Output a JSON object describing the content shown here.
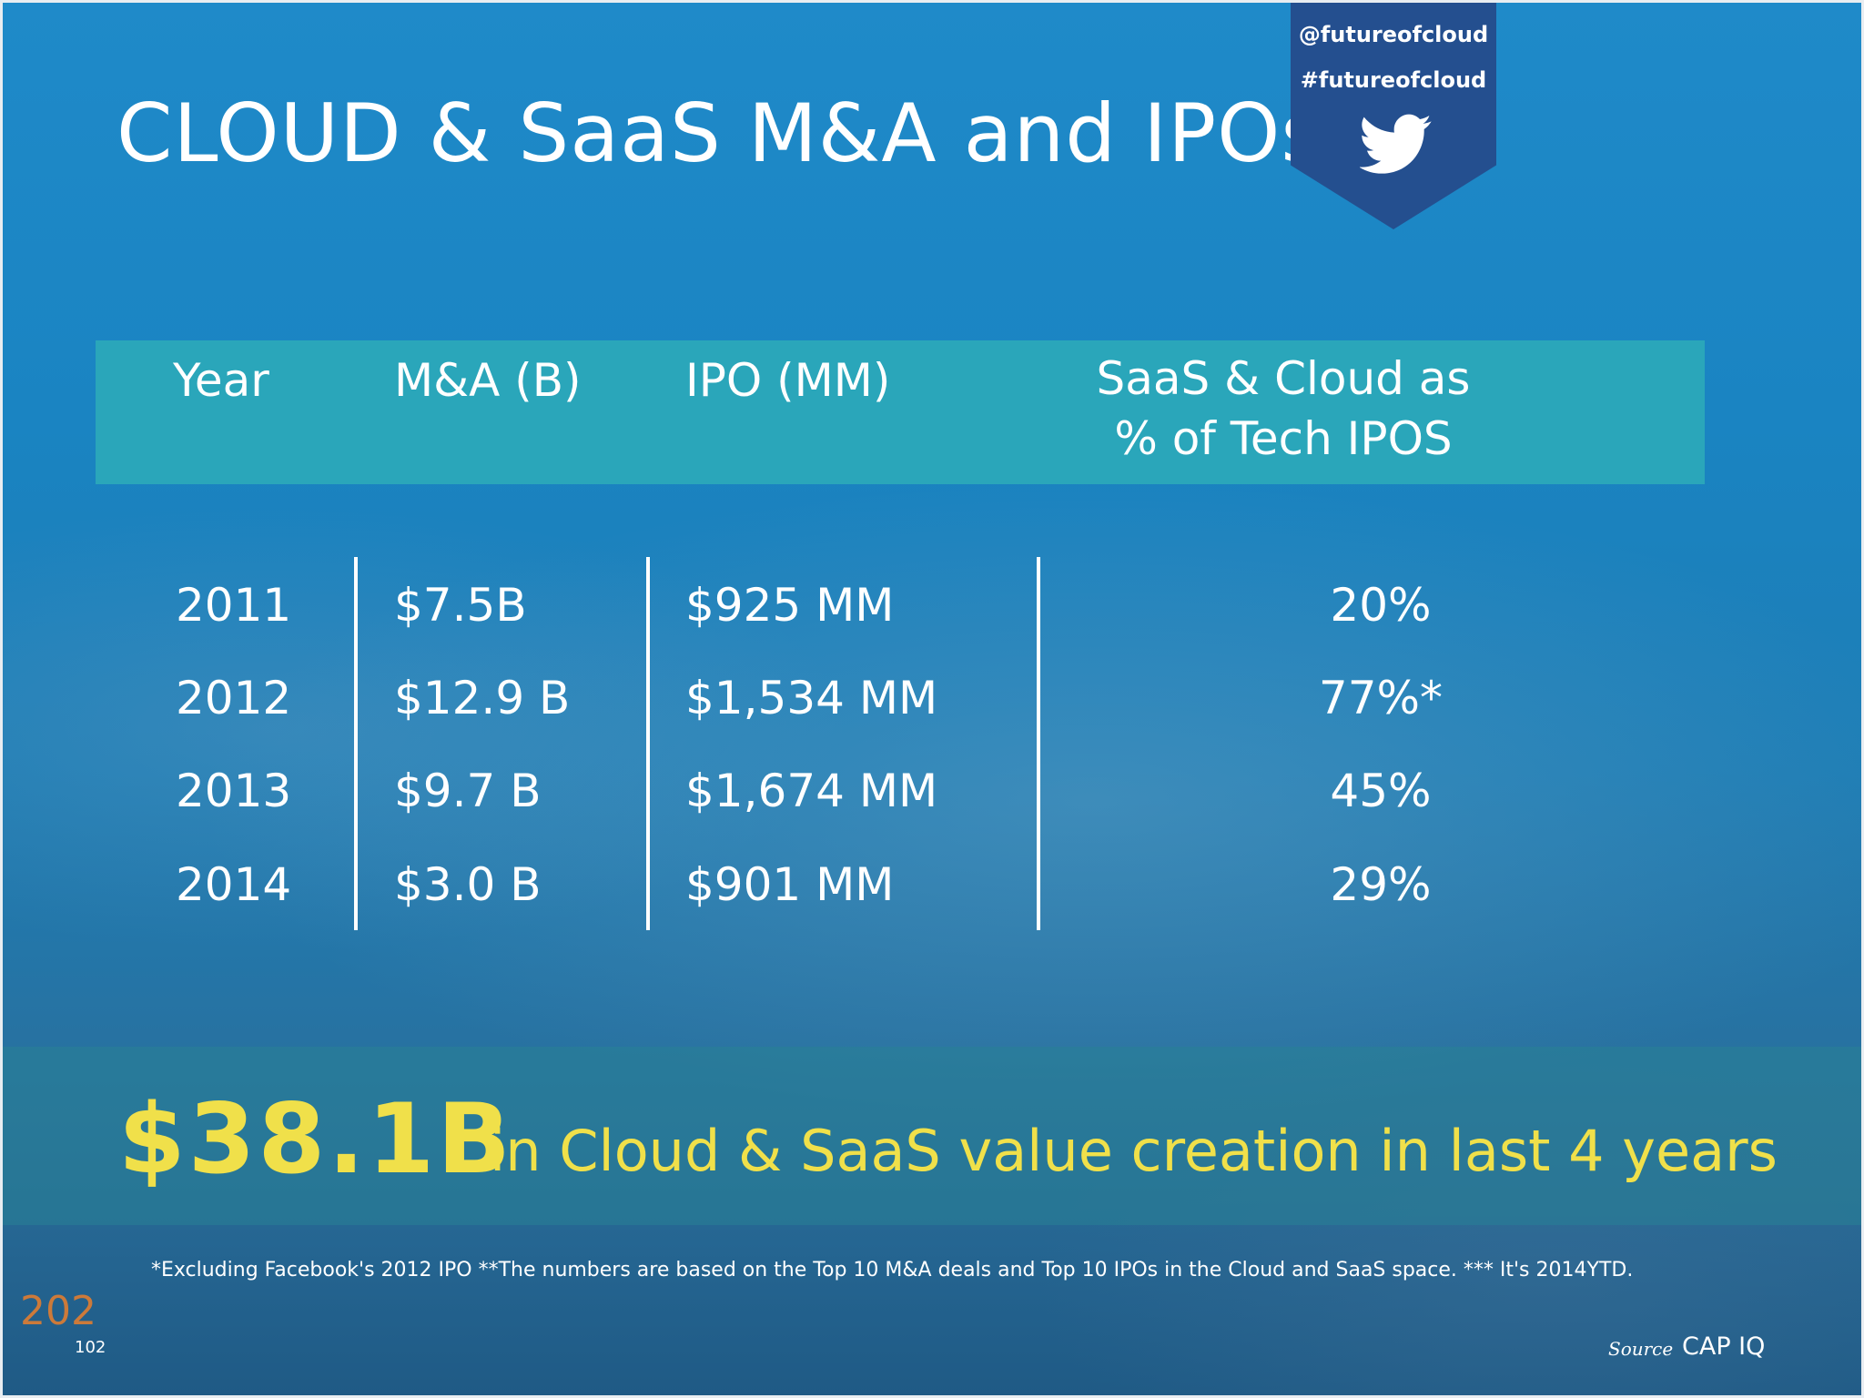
{
  "slide": {
    "title": "CLOUD & SaaS M&A and IPOs"
  },
  "twitter": {
    "handle": "@futureofcloud",
    "hashtag": "#futureofcloud",
    "icon": "twitter-bird-icon"
  },
  "table": {
    "headers": {
      "year": "Year",
      "ma": "M&A (B)",
      "ipo": "IPO (MM)",
      "saas_line1": "SaaS & Cloud as",
      "saas_line2": "% of Tech IPOS"
    },
    "rows": [
      {
        "year": "2011",
        "ma": "$7.5B",
        "ipo": "$925 MM",
        "saas": "20%"
      },
      {
        "year": "2012",
        "ma": "$12.9 B",
        "ipo": "$1,534 MM",
        "saas": "77%*"
      },
      {
        "year": "2013",
        "ma": "$9.7 B",
        "ipo": "$1,674 MM",
        "saas": "45%"
      },
      {
        "year": "2014",
        "ma": "$3.0 B",
        "ipo": "$901 MM",
        "saas": "29%"
      }
    ]
  },
  "highlight": {
    "value": "$38.1B",
    "text": "in Cloud & SaaS value creation in last 4 years"
  },
  "footnote": "*Excluding Facebook's 2012 IPO **The numbers are based on the Top 10 M&A deals and Top 10 IPOs in the Cloud and SaaS space. *** It's 2014YTD.",
  "page_overlay": "202",
  "page_number": "102",
  "source": {
    "label": "Source",
    "value": "CAP IQ"
  },
  "colors": {
    "accent_yellow": "#f0e04a",
    "header_teal": "#2aa6ba",
    "badge_blue": "#244f8f"
  }
}
